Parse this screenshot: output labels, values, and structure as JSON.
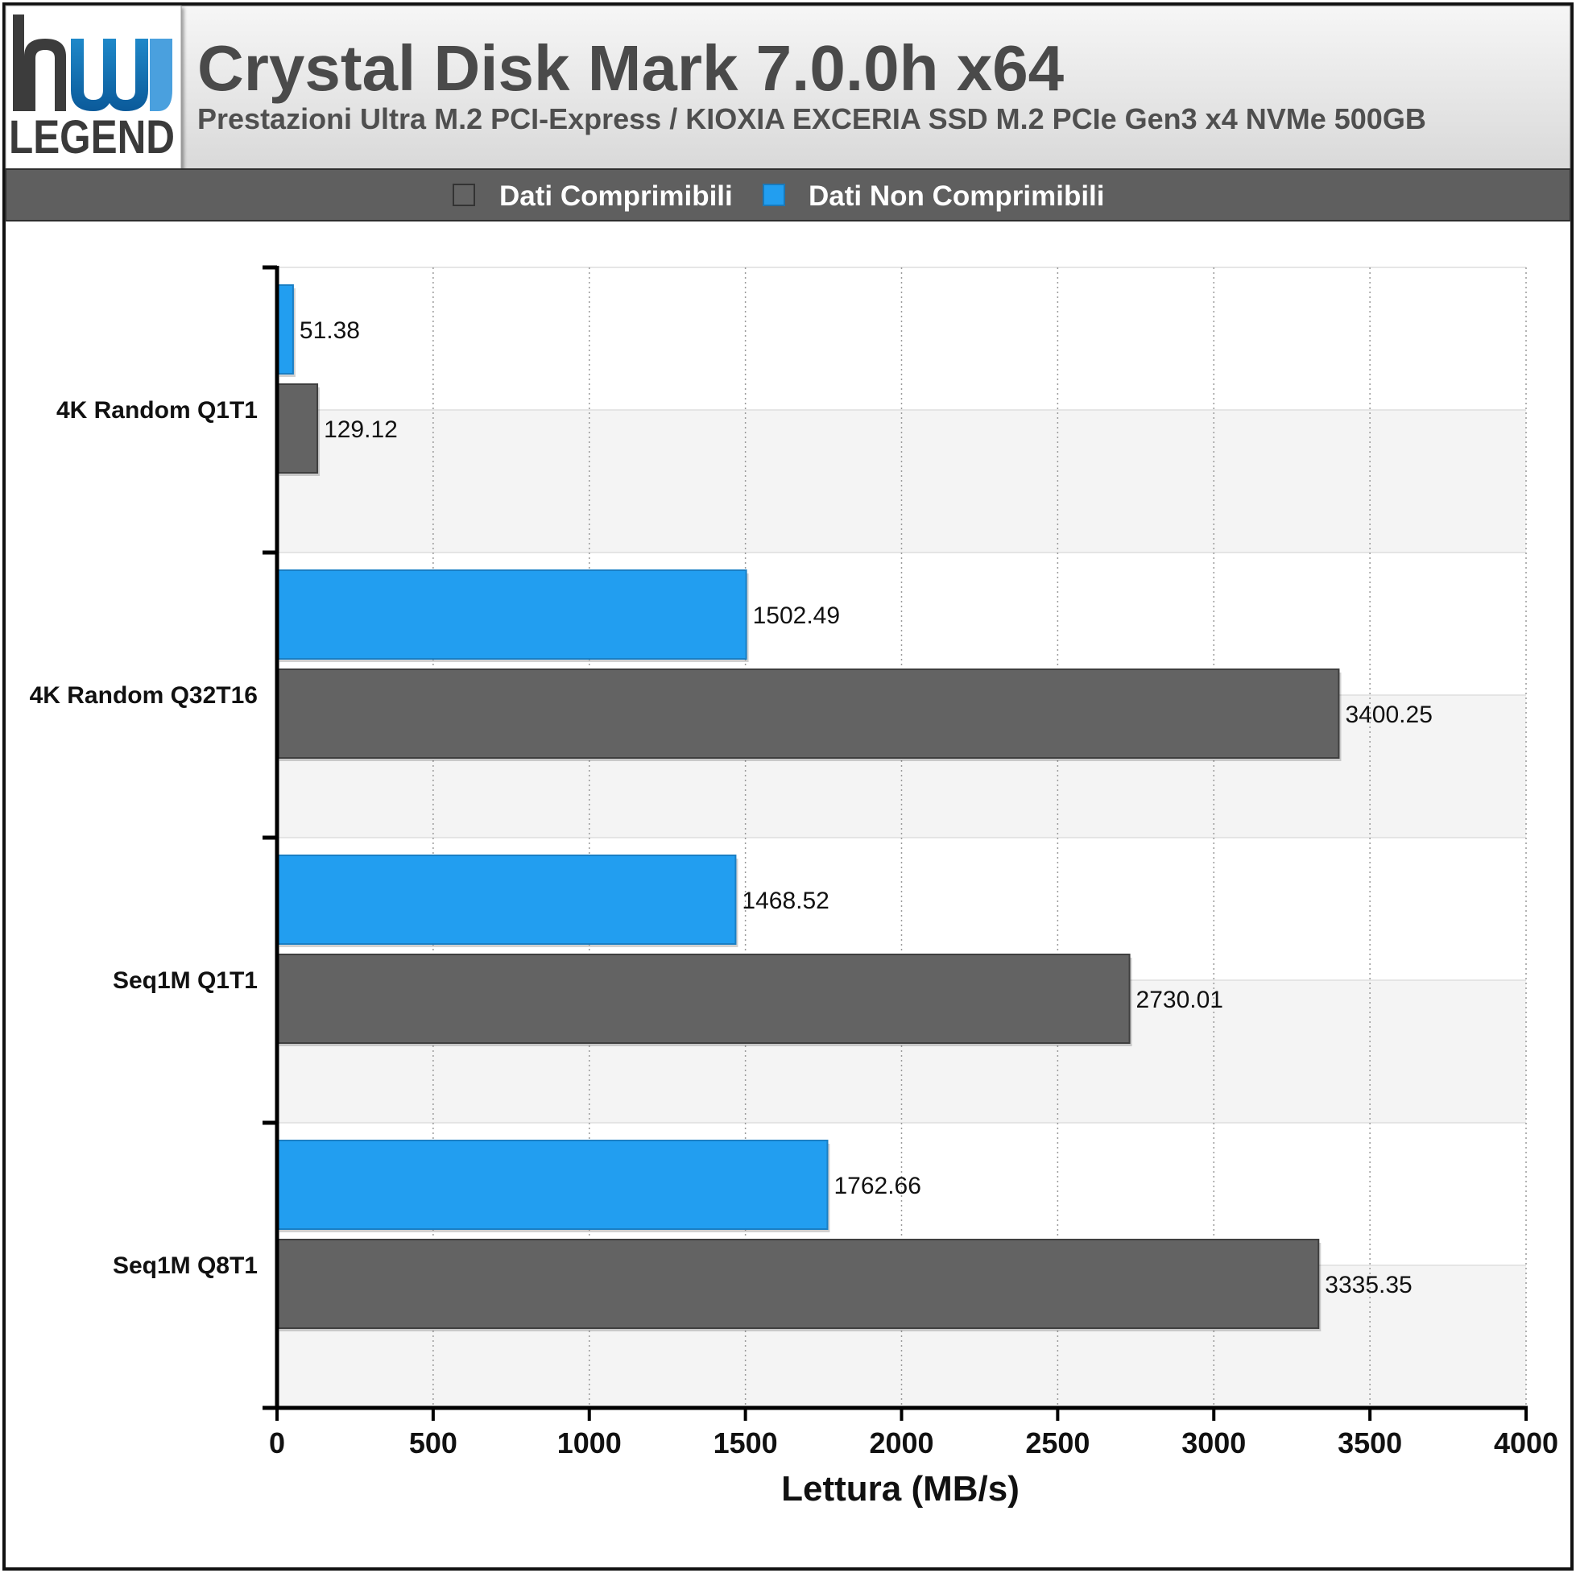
{
  "header": {
    "title": "Crystal Disk Mark 7.0.0h x64",
    "subtitle": "Prestazioni Ultra M.2 PCI-Express / KIOXIA EXCERIA SSD M.2 PCIe Gen3 x4 NVMe 500GB"
  },
  "logo": {
    "mark": "hw",
    "word": "LEGEND"
  },
  "colors": {
    "comprimibili": "#636363",
    "non_comprimibili": "#229ef0",
    "legend_bar": "#5f5f5f"
  },
  "chart_data": {
    "type": "bar",
    "orientation": "horizontal",
    "categories": [
      "4K Random Q1T1",
      "4K Random Q32T16",
      "Seq1M Q1T1",
      "Seq1M Q8T1"
    ],
    "series": [
      {
        "name": "Dati Non Comprimibili",
        "color": "#229ef0",
        "values": [
          51.38,
          1502.49,
          1468.52,
          1762.66
        ]
      },
      {
        "name": "Dati Comprimibili",
        "color": "#636363",
        "values": [
          129.12,
          3400.25,
          2730.01,
          3335.35
        ]
      }
    ],
    "legend": [
      "Dati Comprimibili",
      "Dati Non Comprimibili"
    ],
    "legend_position": "top",
    "xlabel": "Lettura (MB/s)",
    "xlim": [
      0,
      4000
    ],
    "xticks": [
      0,
      500,
      1000,
      1500,
      2000,
      2500,
      3000,
      3500,
      4000
    ],
    "xtick_labels": [
      "0",
      "500",
      "1000",
      "1500",
      "2000",
      "2500",
      "3000",
      "3500",
      "4000"
    ],
    "data_labels": [
      [
        "51.38",
        "129.12"
      ],
      [
        "1502.49",
        "3400.25"
      ],
      [
        "1468.52",
        "2730.01"
      ],
      [
        "1762.66",
        "3335.35"
      ]
    ],
    "grid": "vertical dotted"
  }
}
